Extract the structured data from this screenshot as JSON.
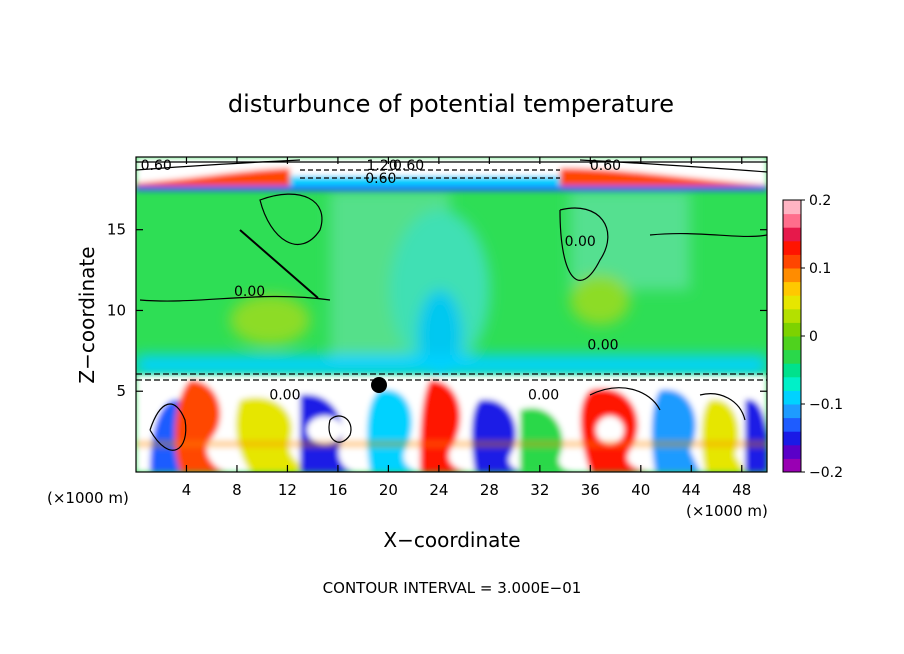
{
  "chart_data": {
    "type": "heatmap",
    "title": "disturbunce of potential temperature",
    "xlabel": "X−coordinate",
    "ylabel": "Z−coordinate",
    "x_unit": "(×1000 m)",
    "z_unit": "(×1000 m)",
    "x_ticks": [
      4,
      8,
      12,
      16,
      20,
      24,
      28,
      32,
      36,
      40,
      44,
      48
    ],
    "z_ticks": [
      5,
      10,
      15
    ],
    "xlim": [
      0,
      50
    ],
    "zlim": [
      0,
      19.5
    ],
    "footer": "CONTOUR INTERVAL = 3.000E−01",
    "colorbar": {
      "ticks": [
        {
          "value": 0.2,
          "label": "0.2"
        },
        {
          "value": 0.1,
          "label": "0.1"
        },
        {
          "value": 0.0,
          "label": "0"
        },
        {
          "value": -0.1,
          "label": "−0.1"
        },
        {
          "value": -0.2,
          "label": "−0.2"
        }
      ],
      "range": [
        -0.2,
        0.2
      ],
      "colors": [
        "#9900b3",
        "#5a00c8",
        "#1a1ae6",
        "#1e5cff",
        "#1e9bff",
        "#00d2ff",
        "#00f0c8",
        "#00e18c",
        "#2ad84a",
        "#4fd21e",
        "#7dd200",
        "#b4e000",
        "#e6e600",
        "#ffc800",
        "#ff8c00",
        "#ff4600",
        "#ff1400",
        "#e6194b",
        "#ff6e8c",
        "#ffb4c3"
      ]
    },
    "contour_labels": [
      {
        "text": "0.60",
        "x": 1.6,
        "z": 19.0
      },
      {
        "text": "1.20",
        "x": 19.5,
        "z": 19.0
      },
      {
        "text": "0.60",
        "x": 21.6,
        "z": 19.0
      },
      {
        "text": "0.60",
        "x": 19.4,
        "z": 18.2
      },
      {
        "text": "0.60",
        "x": 37.2,
        "z": 19.0
      },
      {
        "text": "0.00",
        "x": 9.0,
        "z": 11.2
      },
      {
        "text": "0.00",
        "x": 11.8,
        "z": 4.8
      },
      {
        "text": "0.00",
        "x": 35.2,
        "z": 14.3
      },
      {
        "text": "0.00",
        "x": 37.0,
        "z": 7.9
      },
      {
        "text": "0.00",
        "x": 32.3,
        "z": 4.8
      }
    ]
  }
}
